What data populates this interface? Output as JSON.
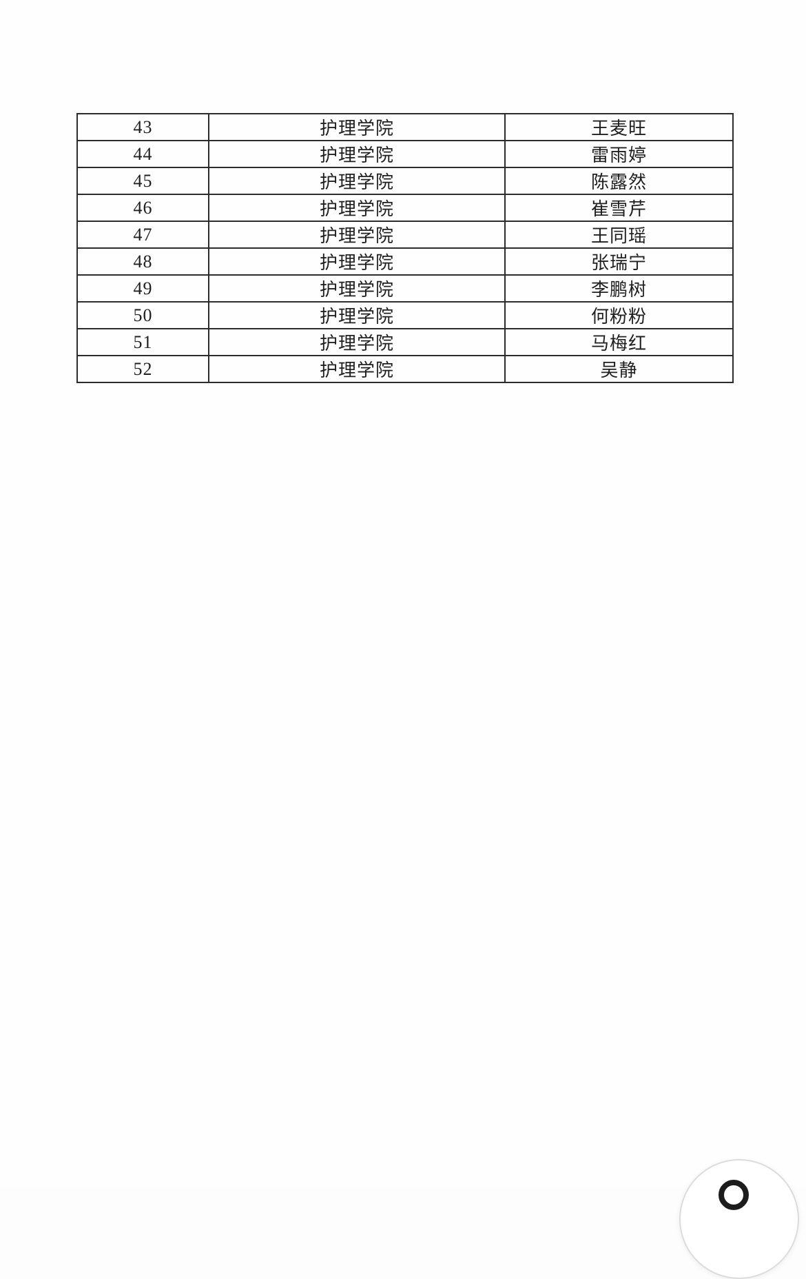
{
  "colors": {
    "page_background": "#fdfdfd",
    "table_border": "#2b2b2b",
    "text": "#1f1f1f",
    "fab_background": "#ffffff",
    "fab_border": "#dcdcdc",
    "fab_glyph": "#1c1c1c"
  },
  "table": {
    "rows": [
      [
        "43",
        "护理学院",
        "王麦旺"
      ],
      [
        "44",
        "护理学院",
        "雷雨婷"
      ],
      [
        "45",
        "护理学院",
        "陈露然"
      ],
      [
        "46",
        "护理学院",
        "崔雪芹"
      ],
      [
        "47",
        "护理学院",
        "王同瑶"
      ],
      [
        "48",
        "护理学院",
        "张瑞宁"
      ],
      [
        "49",
        "护理学院",
        "李鹏树"
      ],
      [
        "50",
        "护理学院",
        "何粉粉"
      ],
      [
        "51",
        "护理学院",
        "马梅红"
      ],
      [
        "52",
        "护理学院",
        "吴静"
      ]
    ]
  },
  "floating_button": {
    "icon": "circle-glyph"
  }
}
